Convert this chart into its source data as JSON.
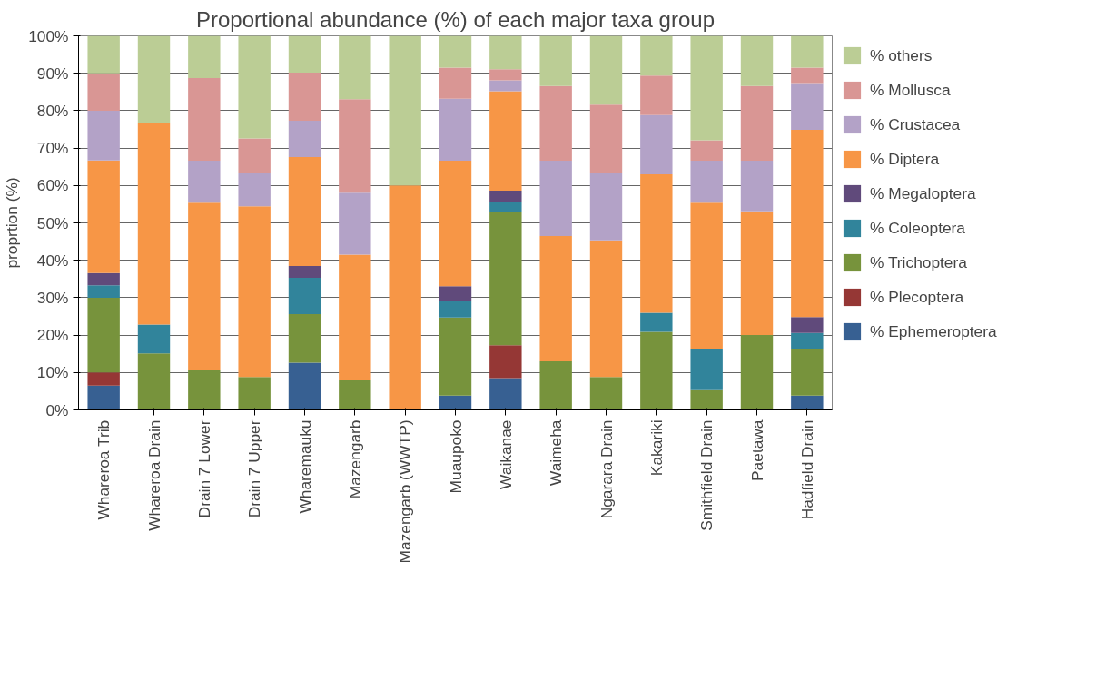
{
  "chart_data": {
    "type": "bar",
    "stacked": true,
    "title": "Proportional abundance (%) of each major taxa group",
    "ylabel": "proprtion (%)",
    "categories": [
      "Whareroa Trib",
      "Whareroa Drain",
      "Drain 7 Lower",
      "Drain 7 Upper",
      "Wharemauku",
      "Mazengarb",
      "Mazengarb (WWTP)",
      "Muaupoko",
      "Waikanae",
      "Waimeha",
      "Ngarara Drain",
      "Kakariki",
      "Smithfield Drain",
      "Paetawa",
      "Hadfield Drain"
    ],
    "series": [
      {
        "name": "% Ephemeroptera",
        "color": "#376092",
        "values": [
          6.5,
          0,
          0,
          0,
          12.6,
          0,
          0,
          3.8,
          8.5,
          0,
          0,
          0,
          0,
          0,
          3.8
        ]
      },
      {
        "name": "% Plecoptera",
        "color": "#953735",
        "values": [
          3.5,
          0,
          0,
          0,
          0,
          0,
          0,
          0,
          8.8,
          0,
          0,
          0,
          0,
          0,
          0
        ]
      },
      {
        "name": "% Trichoptera",
        "color": "#77933c",
        "values": [
          20,
          15.1,
          10.8,
          8.8,
          13,
          8,
          0,
          20.9,
          35.5,
          13,
          8.8,
          20.9,
          5.3,
          20,
          12.6
        ]
      },
      {
        "name": "% Coleoptera",
        "color": "#31849b",
        "values": [
          3.3,
          7.7,
          0,
          0,
          9.7,
          0,
          0,
          4.3,
          2.9,
          0,
          0,
          5.1,
          11.1,
          0,
          4.2
        ]
      },
      {
        "name": "% Megaloptera",
        "color": "#604a7b",
        "values": [
          3.3,
          0,
          0,
          0,
          3.2,
          0,
          0,
          4.1,
          2.9,
          0,
          0,
          0,
          0,
          0,
          4.2
        ]
      },
      {
        "name": "% Diptera",
        "color": "#f79646",
        "values": [
          30.1,
          53.9,
          44.6,
          45.6,
          29.1,
          33.5,
          60,
          33.5,
          26.6,
          33.5,
          36.5,
          37,
          39,
          33.1,
          50.1
        ]
      },
      {
        "name": "% Crustacea",
        "color": "#b3a2c7",
        "values": [
          13.3,
          0,
          11.2,
          9.1,
          9.7,
          16.6,
          0,
          16.6,
          2.9,
          20.1,
          18.2,
          15.8,
          11.2,
          13.5,
          12.5
        ]
      },
      {
        "name": "% Mollusca",
        "color": "#d99694",
        "values": [
          10,
          0,
          22.1,
          9.1,
          12.9,
          25,
          0,
          8.3,
          3,
          20,
          18.1,
          10.6,
          5.5,
          20,
          4.1
        ]
      },
      {
        "name": "% others",
        "color": "#bbcd95",
        "values": [
          10,
          23.3,
          11.3,
          27.4,
          9.8,
          16.9,
          40,
          8.5,
          8.9,
          13.4,
          18.4,
          10.6,
          27.9,
          13.4,
          8.5
        ]
      }
    ],
    "ylim": [
      0,
      100
    ],
    "yticks": [
      {
        "value": 0,
        "label": "0%"
      },
      {
        "value": 10,
        "label": "10%"
      },
      {
        "value": 20,
        "label": "20%"
      },
      {
        "value": 30,
        "label": "30%"
      },
      {
        "value": 40,
        "label": "40%"
      },
      {
        "value": 50,
        "label": "50%"
      },
      {
        "value": 60,
        "label": "60%"
      },
      {
        "value": 70,
        "label": "70%"
      },
      {
        "value": 80,
        "label": "80%"
      },
      {
        "value": 90,
        "label": "90%"
      },
      {
        "value": 100,
        "label": "100%"
      }
    ],
    "grid": "y",
    "legend": "right"
  }
}
